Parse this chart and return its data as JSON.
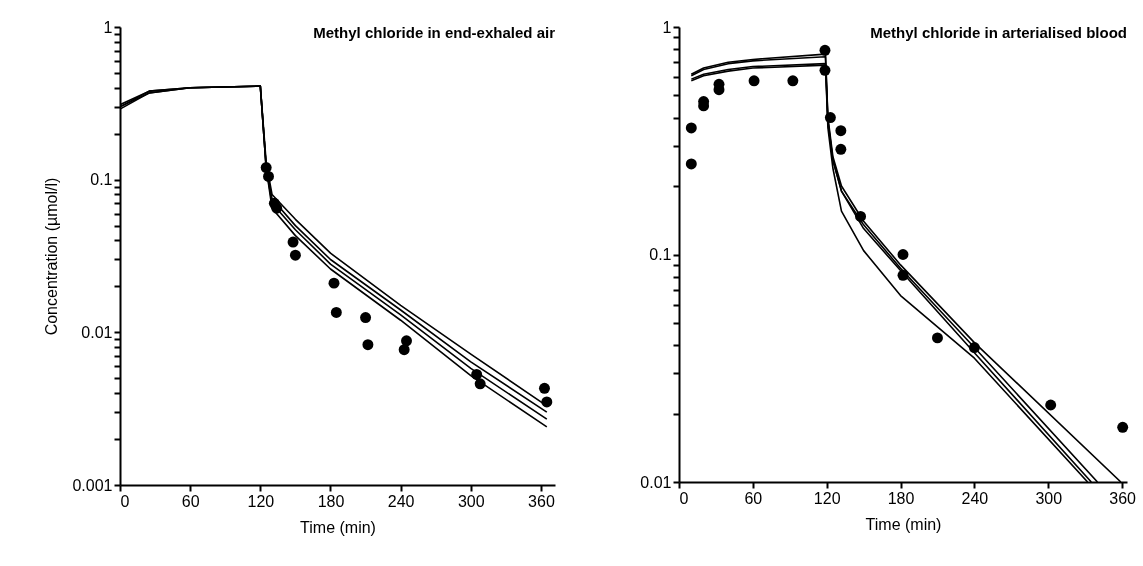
{
  "chart_data": [
    {
      "type": "line",
      "title": "Methyl chloride in end-exhaled air",
      "xlabel": "Time (min)",
      "ylabel": "Concentration (µmol/l)",
      "log": true,
      "xlim": [
        0,
        372
      ],
      "xticks": [
        0,
        60,
        120,
        180,
        240,
        300,
        360
      ],
      "ylim": [
        0.001,
        1
      ],
      "yticks": [
        0.001,
        {
          "value": 0.002,
          "label": null
        },
        {
          "value": 0.003,
          "label": null
        },
        {
          "value": 0.004,
          "label": null
        },
        {
          "value": 0.005,
          "label": null
        },
        {
          "value": 0.006,
          "label": null
        },
        {
          "value": 0.007,
          "label": null
        },
        {
          "value": 0.008,
          "label": null
        },
        {
          "value": 0.009,
          "label": null
        },
        0.01,
        {
          "value": 0.02,
          "label": null
        },
        {
          "value": 0.03,
          "label": null
        },
        {
          "value": 0.04,
          "label": null
        },
        {
          "value": 0.05,
          "label": null
        },
        {
          "value": 0.06,
          "label": null
        },
        {
          "value": 0.07,
          "label": null
        },
        {
          "value": 0.08,
          "label": null
        },
        {
          "value": 0.09,
          "label": null
        },
        0.1,
        {
          "value": 0.2,
          "label": null
        },
        {
          "value": 0.3,
          "label": null
        },
        {
          "value": 0.4,
          "label": null
        },
        {
          "value": 0.5,
          "label": null
        },
        {
          "value": 0.6,
          "label": null
        },
        {
          "value": 0.7,
          "label": null
        },
        {
          "value": 0.8,
          "label": null
        },
        {
          "value": 0.9,
          "label": null
        },
        1
      ],
      "series": [
        {
          "color": "#000000",
          "x": [
            0,
            25,
            60,
            120,
            125,
            130,
            150,
            180,
            240,
            300,
            365
          ],
          "values": [
            0.31,
            0.38,
            0.4,
            0.41,
            0.13,
            0.08,
            0.055,
            0.033,
            0.015,
            0.0072,
            0.0033
          ]
        },
        {
          "color": "#000000",
          "x": [
            0,
            25,
            60,
            120,
            125,
            130,
            150,
            180,
            240,
            300,
            365
          ],
          "values": [
            0.3,
            0.38,
            0.4,
            0.41,
            0.12,
            0.075,
            0.05,
            0.03,
            0.014,
            0.0064,
            0.003
          ]
        },
        {
          "color": "#000000",
          "x": [
            0,
            25,
            60,
            120,
            125,
            130,
            150,
            180,
            240,
            300,
            365
          ],
          "values": [
            0.3,
            0.37,
            0.4,
            0.41,
            0.12,
            0.07,
            0.047,
            0.028,
            0.013,
            0.0058,
            0.0027
          ]
        },
        {
          "color": "#000000",
          "x": [
            0,
            25,
            60,
            120,
            125,
            130,
            150,
            180,
            240,
            300,
            365
          ],
          "values": [
            0.29,
            0.37,
            0.4,
            0.41,
            0.12,
            0.065,
            0.043,
            0.026,
            0.012,
            0.0052,
            0.0024
          ]
        },
        {
          "type": "scatter",
          "color": "#000000",
          "marker": "circle",
          "x": [
            125,
            127,
            132,
            134,
            148,
            150,
            183,
            185,
            210,
            212,
            243,
            245,
            305,
            308,
            363,
            365
          ],
          "values": [
            0.12,
            0.105,
            0.07,
            0.065,
            0.039,
            0.032,
            0.021,
            0.0135,
            0.0125,
            0.0083,
            0.0077,
            0.0088,
            0.0053,
            0.0046,
            0.0043,
            0.0035
          ]
        }
      ]
    },
    {
      "type": "line",
      "title": "Methyl chloride in arterialised  blood",
      "xlabel": "Time (min)",
      "log": true,
      "xlim": [
        0,
        364
      ],
      "xticks": [
        0,
        60,
        120,
        180,
        240,
        300,
        360
      ],
      "ylim": [
        0.01,
        1
      ],
      "yticks": [
        0.01,
        {
          "value": 0.02,
          "label": null
        },
        {
          "value": 0.03,
          "label": null
        },
        {
          "value": 0.04,
          "label": null
        },
        {
          "value": 0.05,
          "label": null
        },
        {
          "value": 0.06,
          "label": null
        },
        {
          "value": 0.07,
          "label": null
        },
        {
          "value": 0.08,
          "label": null
        },
        {
          "value": 0.09,
          "label": null
        },
        0.1,
        {
          "value": 0.2,
          "label": null
        },
        {
          "value": 0.3,
          "label": null
        },
        {
          "value": 0.4,
          "label": null
        },
        {
          "value": 0.5,
          "label": null
        },
        {
          "value": 0.6,
          "label": null
        },
        {
          "value": 0.7,
          "label": null
        },
        {
          "value": 0.8,
          "label": null
        },
        {
          "value": 0.9,
          "label": null
        },
        1
      ],
      "series": [
        {
          "color": "#000000",
          "x": [
            10,
            20,
            40,
            60,
            119,
            121,
            125,
            132,
            150,
            180,
            240,
            359
          ],
          "values": [
            0.62,
            0.66,
            0.7,
            0.72,
            0.76,
            0.4,
            0.27,
            0.2,
            0.14,
            0.09,
            0.041,
            0.01
          ]
        },
        {
          "color": "#000000",
          "x": [
            10,
            20,
            40,
            60,
            119,
            121,
            125,
            132,
            150,
            180,
            240,
            340
          ],
          "values": [
            0.61,
            0.65,
            0.69,
            0.71,
            0.74,
            0.39,
            0.26,
            0.19,
            0.135,
            0.087,
            0.039,
            0.01
          ]
        },
        {
          "color": "#000000",
          "x": [
            10,
            20,
            40,
            60,
            119,
            121,
            125,
            132,
            150,
            180,
            240,
            335
          ],
          "values": [
            0.59,
            0.62,
            0.65,
            0.67,
            0.69,
            0.38,
            0.26,
            0.19,
            0.13,
            0.085,
            0.037,
            0.01
          ]
        },
        {
          "color": "#000000",
          "x": [
            10,
            20,
            40,
            60,
            119,
            121,
            125,
            132,
            150,
            180,
            240,
            332
          ],
          "values": [
            0.58,
            0.61,
            0.64,
            0.66,
            0.68,
            0.36,
            0.24,
            0.155,
            0.104,
            0.066,
            0.035,
            0.01
          ]
        },
        {
          "type": "scatter",
          "color": "#000000",
          "marker": "circle",
          "x": [
            10,
            10,
            20,
            20,
            32.5,
            32.5,
            61,
            92.5,
            118.6,
            118.6,
            123,
            131.5,
            131.5,
            147.5,
            182,
            182,
            210,
            240,
            302,
            360.5
          ],
          "values": [
            0.36,
            0.25,
            0.47,
            0.45,
            0.56,
            0.53,
            0.58,
            0.58,
            0.79,
            0.645,
            0.4,
            0.35,
            0.29,
            0.147,
            0.1,
            0.081,
            0.043,
            0.039,
            0.0218,
            0.0174
          ]
        }
      ]
    }
  ]
}
